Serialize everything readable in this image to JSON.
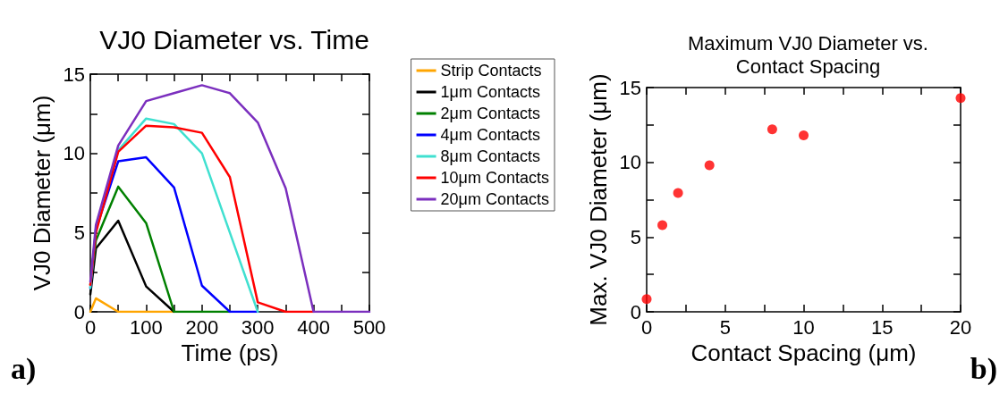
{
  "chart_data": [
    {
      "type": "line",
      "title": "VJ0 Diameter vs. Time",
      "xlabel": "Time (ps)",
      "ylabel": "VJ0 Diameter (μm)",
      "annotations": [
        "a)"
      ],
      "x": [
        0,
        10,
        50,
        100,
        150,
        200,
        250,
        300,
        350,
        400,
        450,
        500
      ],
      "series": [
        {
          "name": "Strip Contacts",
          "color": "#ffa500",
          "values": [
            0,
            0.85,
            0,
            0,
            0,
            null,
            null,
            null,
            null,
            null,
            null,
            null
          ]
        },
        {
          "name": "1μm Contacts",
          "color": "#000000",
          "values": [
            1.1,
            4.0,
            5.75,
            1.6,
            0,
            null,
            null,
            null,
            null,
            null,
            null,
            null
          ]
        },
        {
          "name": "2μm Contacts",
          "color": "#008000",
          "values": [
            1.7,
            4.5,
            7.9,
            5.6,
            0,
            0,
            0,
            null,
            null,
            null,
            null,
            null
          ]
        },
        {
          "name": "4μm Contacts",
          "color": "#0000ff",
          "values": [
            1.5,
            5.2,
            9.5,
            9.75,
            7.85,
            1.65,
            0,
            0,
            null,
            null,
            null,
            null
          ]
        },
        {
          "name": "8μm Contacts",
          "color": "#40e0d0",
          "values": [
            1.5,
            5.3,
            10.2,
            12.2,
            11.85,
            10.0,
            5.0,
            0,
            null,
            null,
            null,
            null
          ]
        },
        {
          "name": "10μm Contacts",
          "color": "#ff0000",
          "values": [
            1.7,
            5.0,
            10.1,
            11.75,
            11.65,
            11.3,
            8.5,
            0.6,
            0,
            0,
            null,
            null
          ]
        },
        {
          "name": "20μm Contacts",
          "color": "#7b2fbe",
          "values": [
            1.9,
            5.5,
            10.5,
            13.3,
            13.8,
            14.3,
            13.8,
            11.95,
            7.8,
            0,
            0,
            0
          ]
        }
      ],
      "xlim": [
        0,
        500
      ],
      "xticks": [
        0,
        {
          "value": 50,
          "label": null
        },
        100,
        {
          "value": 150,
          "label": null
        },
        200,
        {
          "value": 250,
          "label": null
        },
        300,
        {
          "value": 350,
          "label": null
        },
        400,
        {
          "value": 450,
          "label": null
        },
        500
      ],
      "ylim": [
        0,
        15
      ],
      "yticks": [
        0,
        {
          "value": 2.5,
          "label": null
        },
        5,
        {
          "value": 7.5,
          "label": null
        },
        10,
        {
          "value": 12.5,
          "label": null
        },
        15
      ],
      "grid": false,
      "legend": "top right",
      "marker": "none",
      "line_style": "solid"
    },
    {
      "type": "scatter",
      "title": "Maximum VJ0 Diameter vs.\nContact Spacing",
      "xlabel": "Contact Spacing (μm)",
      "ylabel": "Max. VJ0 Diameter (μm)",
      "annotations": [
        "b)"
      ],
      "x": [
        0,
        1,
        2,
        4,
        8,
        10,
        20
      ],
      "series": [
        {
          "color": "#ff0000",
          "values": [
            0.85,
            5.8,
            7.95,
            9.8,
            12.2,
            11.8,
            14.3
          ]
        }
      ],
      "xlim": [
        0,
        20
      ],
      "xticks": [
        0,
        {
          "value": 2.5,
          "label": null
        },
        5,
        {
          "value": 7.5,
          "label": null
        },
        10,
        {
          "value": 12.5,
          "label": null
        },
        15,
        {
          "value": 17.5,
          "label": null
        },
        20
      ],
      "ylim": [
        0,
        15
      ],
      "yticks": [
        0,
        {
          "value": 2.5,
          "label": null
        },
        5,
        {
          "value": 7.5,
          "label": null
        },
        10,
        {
          "value": 12.5,
          "label": null
        },
        15
      ],
      "grid": false,
      "legend": false,
      "marker": "circle"
    }
  ]
}
